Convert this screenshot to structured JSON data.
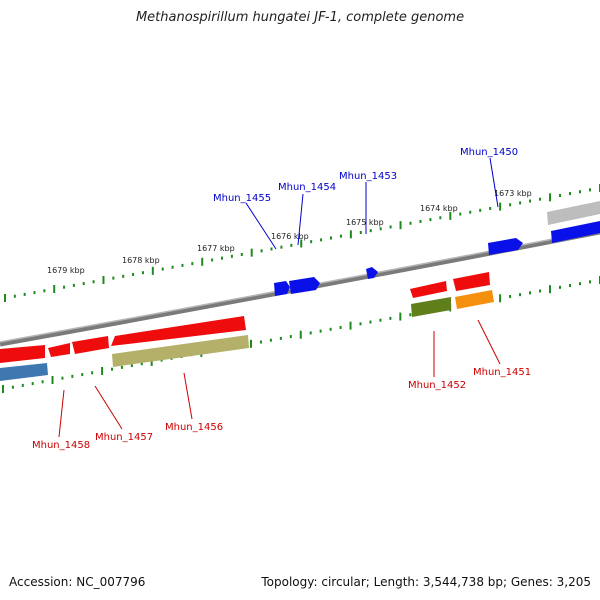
{
  "title": "Methanospirillum hungatei JF-1, complete genome",
  "footer": {
    "accession": "Accession: NC_007796",
    "summary": "Topology: circular; Length: 3,544,738 bp; Genes: 3,205"
  },
  "colors": {
    "backbone": "#7d7d7d",
    "tick": "#1e8a1e",
    "forward_label": "#0000cc",
    "reverse_label": "#cc0000",
    "gene_blue": "#0a10e8",
    "gene_red": "#ef0c0c",
    "gene_olive": "#b4b06a",
    "gene_steel": "#3f78b0",
    "gene_green": "#5f7f1a",
    "gene_orange": "#f5900e",
    "gene_gray": "#bcbcbc"
  },
  "scale_labels": [
    "1679 kbp",
    "1678 kbp",
    "1677 kbp",
    "1676 kbp",
    "1675 kbp",
    "1674 kbp",
    "1673 kbp"
  ],
  "forward_genes": [
    {
      "name": "Mhun_1455",
      "color": "blue"
    },
    {
      "name": "Mhun_1454",
      "color": "blue"
    },
    {
      "name": "Mhun_1453",
      "color": "blue"
    },
    {
      "name": "Mhun_1450",
      "color": "blue"
    }
  ],
  "reverse_genes": [
    {
      "name": "Mhun_1458",
      "color": "red"
    },
    {
      "name": "Mhun_1457",
      "color": "red"
    },
    {
      "name": "Mhun_1456",
      "color": "red"
    },
    {
      "name": "Mhun_1452",
      "color": "red"
    },
    {
      "name": "Mhun_1451",
      "color": "red"
    }
  ]
}
